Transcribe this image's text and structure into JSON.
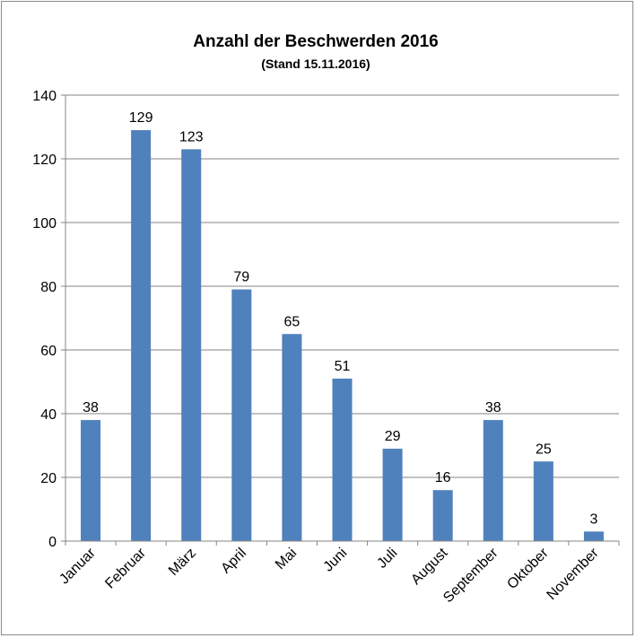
{
  "chart_data": {
    "type": "bar",
    "title": "Anzahl der Beschwerden 2016",
    "subtitle": "(Stand 15.11.2016)",
    "xlabel": "",
    "ylabel": "",
    "categories": [
      "Januar",
      "Februar",
      "März",
      "April",
      "Mai",
      "Juni",
      "Juli",
      "August",
      "September",
      "Oktober",
      "November"
    ],
    "values": [
      38,
      129,
      123,
      79,
      65,
      51,
      29,
      16,
      38,
      25,
      3
    ],
    "ylim": [
      0,
      140
    ],
    "yticks": [
      0,
      20,
      40,
      60,
      80,
      100,
      120,
      140
    ],
    "grid": true,
    "legend": "none",
    "bar_color": "#4f81bd",
    "grid_color": "#868686"
  }
}
